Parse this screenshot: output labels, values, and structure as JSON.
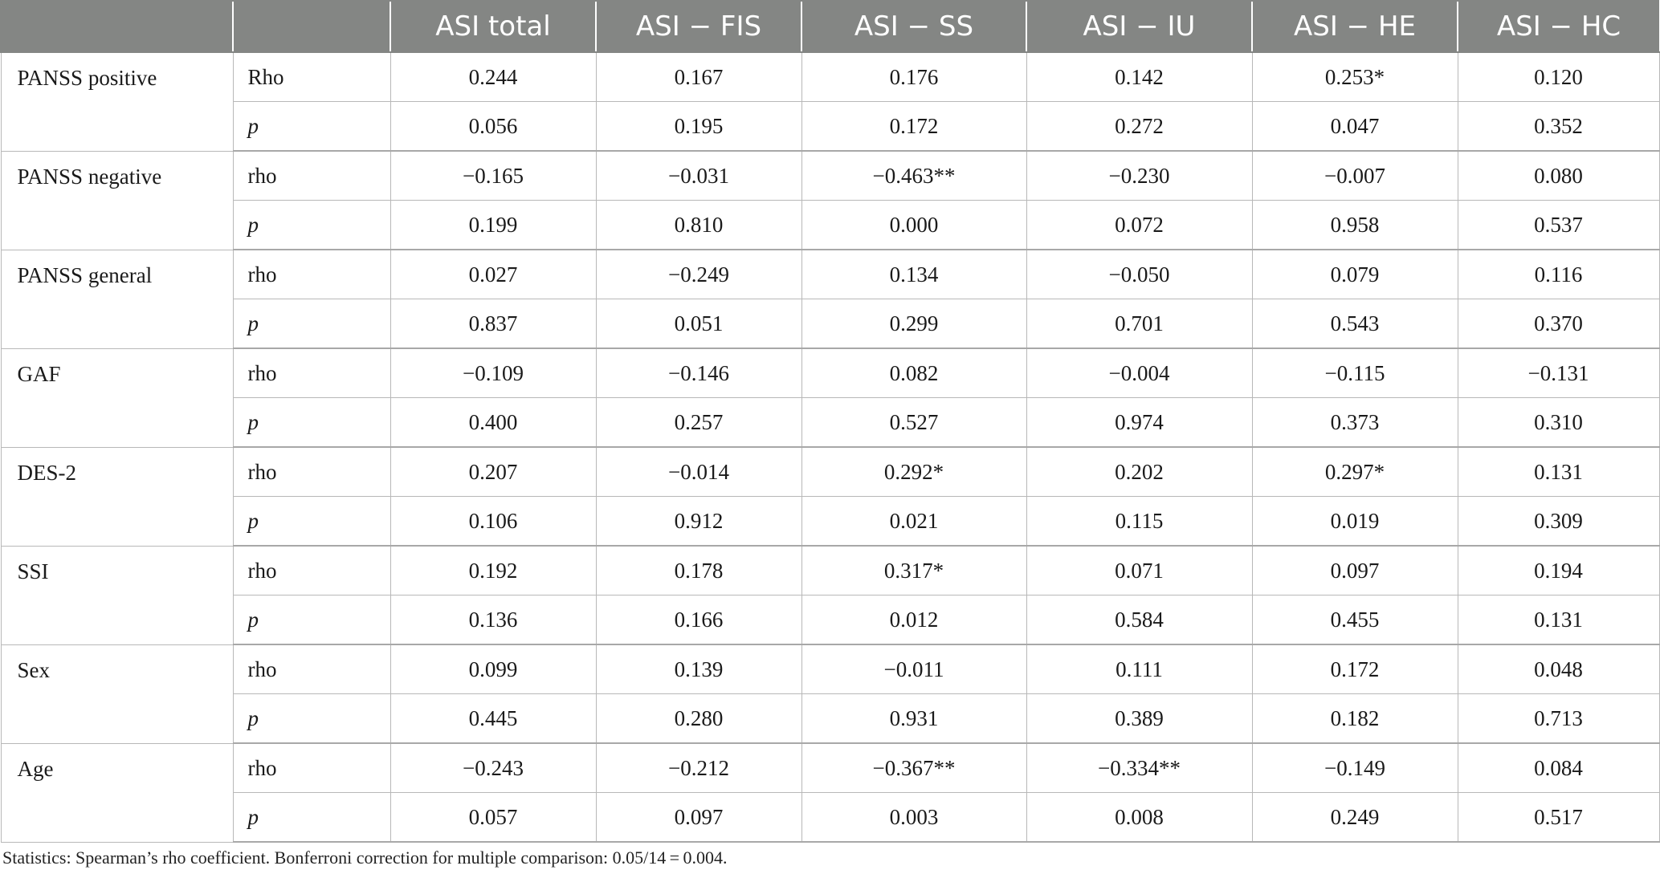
{
  "table": {
    "columns": [
      "",
      "",
      "ASI total",
      "ASI − FIS",
      "ASI − SS",
      "ASI − IU",
      "ASI − HE",
      "ASI − HC"
    ],
    "groups": [
      {
        "variable": "PANSS positive",
        "rows": [
          {
            "stat": "Rho",
            "values": [
              "0.244",
              "0.167",
              "0.176",
              "0.142",
              "0.253*",
              "0.120"
            ]
          },
          {
            "stat": "p",
            "values": [
              "0.056",
              "0.195",
              "0.172",
              "0.272",
              "0.047",
              "0.352"
            ]
          }
        ]
      },
      {
        "variable": "PANSS negative",
        "rows": [
          {
            "stat": "rho",
            "values": [
              "−0.165",
              "−0.031",
              "−0.463**",
              "−0.230",
              "−0.007",
              "0.080"
            ]
          },
          {
            "stat": "p",
            "values": [
              "0.199",
              "0.810",
              "0.000",
              "0.072",
              "0.958",
              "0.537"
            ]
          }
        ]
      },
      {
        "variable": "PANSS general",
        "rows": [
          {
            "stat": "rho",
            "values": [
              "0.027",
              "−0.249",
              "0.134",
              "−0.050",
              "0.079",
              "0.116"
            ]
          },
          {
            "stat": "p",
            "values": [
              "0.837",
              "0.051",
              "0.299",
              "0.701",
              "0.543",
              "0.370"
            ]
          }
        ]
      },
      {
        "variable": "GAF",
        "rows": [
          {
            "stat": "rho",
            "values": [
              "−0.109",
              "−0.146",
              "0.082",
              "−0.004",
              "−0.115",
              "−0.131"
            ]
          },
          {
            "stat": "p",
            "values": [
              "0.400",
              "0.257",
              "0.527",
              "0.974",
              "0.373",
              "0.310"
            ]
          }
        ]
      },
      {
        "variable": "DES-2",
        "rows": [
          {
            "stat": "rho",
            "values": [
              "0.207",
              "−0.014",
              "0.292*",
              "0.202",
              "0.297*",
              "0.131"
            ]
          },
          {
            "stat": "p",
            "values": [
              "0.106",
              "0.912",
              "0.021",
              "0.115",
              "0.019",
              "0.309"
            ]
          }
        ]
      },
      {
        "variable": "SSI",
        "rows": [
          {
            "stat": "rho",
            "values": [
              "0.192",
              "0.178",
              "0.317*",
              "0.071",
              "0.097",
              "0.194"
            ]
          },
          {
            "stat": "p",
            "values": [
              "0.136",
              "0.166",
              "0.012",
              "0.584",
              "0.455",
              "0.131"
            ]
          }
        ]
      },
      {
        "variable": "Sex",
        "rows": [
          {
            "stat": "rho",
            "values": [
              "0.099",
              "0.139",
              "−0.011",
              "0.111",
              "0.172",
              "0.048"
            ]
          },
          {
            "stat": "p",
            "values": [
              "0.445",
              "0.280",
              "0.931",
              "0.389",
              "0.182",
              "0.713"
            ]
          }
        ]
      },
      {
        "variable": "Age",
        "rows": [
          {
            "stat": "rho",
            "values": [
              "−0.243",
              "−0.212",
              "−0.367**",
              "−0.334**",
              "−0.149",
              "0.084"
            ]
          },
          {
            "stat": "p",
            "values": [
              "0.057",
              "0.097",
              "0.003",
              "0.008",
              "0.249",
              "0.517"
            ]
          }
        ]
      }
    ]
  },
  "footnote": "Statistics: Spearman’s rho coefficient. Bonferroni correction for multiple comparison: 0.05/14 = 0.004."
}
